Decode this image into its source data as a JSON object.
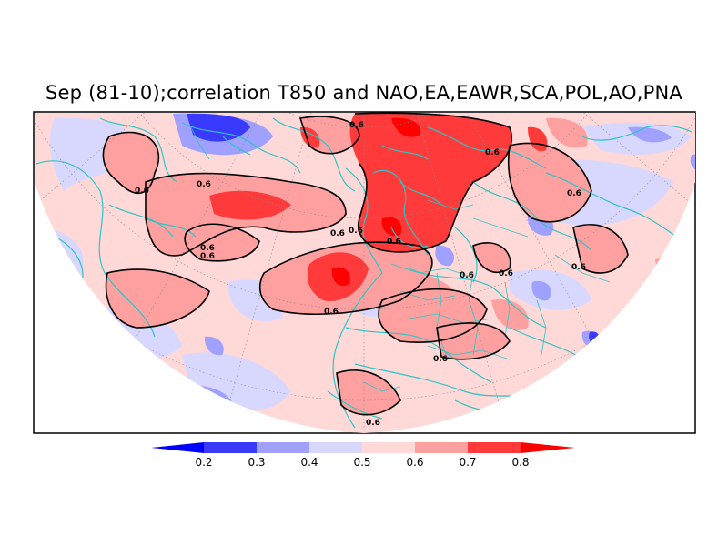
{
  "title": "Sep (81-10);correlation T850 and NAO,EA,EAWR,SCA,POL,AO,PNA",
  "map": {
    "projection": "north-polar-stereographic",
    "variable": "T850 correlation",
    "contour_level": "0.6",
    "contour_labels": [
      "0.6",
      "0.6",
      "0.6",
      "0.6",
      "0.6",
      "0.6",
      "0.6",
      "0.6",
      "0.6",
      "0.6",
      "0.6",
      "0.6",
      "0.6",
      "0.6",
      "0.6",
      "0.6"
    ],
    "coastline_color": "#2ec4c4",
    "contour_color": "#000000"
  },
  "colorbar": {
    "levels": [
      "0.2",
      "0.3",
      "0.4",
      "0.5",
      "0.6",
      "0.7",
      "0.8"
    ],
    "colors": [
      "#0000ff",
      "#3a3aff",
      "#a0a0ff",
      "#d8d8ff",
      "#ffd8d8",
      "#ffa0a0",
      "#ff3a3a",
      "#ff0000"
    ]
  }
}
